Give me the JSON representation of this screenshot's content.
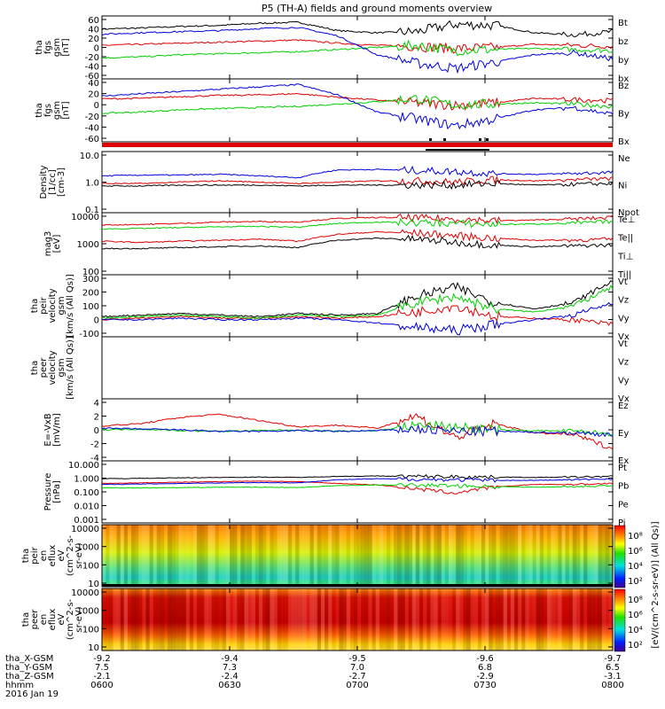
{
  "title": "P5 (TH-A) fields and ground moments overview",
  "colors": {
    "black": "#000000",
    "red": "#e00000",
    "green": "#00d000",
    "blue": "#0000e0"
  },
  "panels": [
    {
      "id": "fgs-gsm-a",
      "ylabel": [
        "tha",
        "fgs",
        "gsm",
        "[nT]"
      ],
      "ticks": [
        "60",
        "40",
        "20",
        "0",
        "-20",
        "-40",
        "-60"
      ],
      "legend": [
        {
          "text": "Bt",
          "color": "black"
        },
        {
          "text": "bz",
          "color": "red"
        },
        {
          "text": "by",
          "color": "green"
        },
        {
          "text": "bx",
          "color": "blue"
        }
      ]
    },
    {
      "id": "fgs-gsm-b",
      "ylabel": [
        "tha",
        "fgs",
        "gsm",
        "[nT]"
      ],
      "ticks": [
        "40",
        "20",
        "0",
        "-20",
        "-40",
        "-60"
      ],
      "legend": [
        {
          "text": "Bz",
          "color": "red"
        },
        {
          "text": "By",
          "color": "green"
        },
        {
          "text": "Bx",
          "color": "blue"
        }
      ]
    },
    {
      "id": "density",
      "ylabel": [
        "Density",
        "[1/cc]",
        "[cm-3]"
      ],
      "ticks": [
        "10.0",
        "1.0",
        "0.1"
      ],
      "legend": [
        {
          "text": "Ne",
          "color": "red"
        },
        {
          "text": "Ni",
          "color": "black"
        },
        {
          "text": "Npot",
          "color": "blue"
        }
      ]
    },
    {
      "id": "temperature",
      "ylabel": [
        "mag3",
        "[eV]"
      ],
      "ticks": [
        "10000",
        "1000",
        "100"
      ],
      "legend": [
        {
          "text": "Te⊥",
          "color": "red"
        },
        {
          "text": "Te||",
          "color": "black"
        },
        {
          "text": "Ti⊥",
          "color": "red"
        },
        {
          "text": "Ti||",
          "color": "green"
        }
      ]
    },
    {
      "id": "peir-velocity",
      "ylabel": [
        "tha",
        "peir",
        "velocity",
        "gsm",
        "[km/s (All Qs)]"
      ],
      "ticks": [
        "300",
        "200",
        "100",
        "0",
        "-100"
      ],
      "legend": [
        {
          "text": "Vt",
          "color": "black"
        },
        {
          "text": "Vz",
          "color": "red"
        },
        {
          "text": "Vy",
          "color": "green"
        },
        {
          "text": "Vx",
          "color": "blue"
        }
      ]
    },
    {
      "id": "peer-velocity",
      "ylabel": [
        "tha",
        "peer",
        "velocity",
        "gsm",
        "[km/s (All Qs)]"
      ],
      "ticks": [],
      "legend": [
        {
          "text": "Vt",
          "color": "black"
        },
        {
          "text": "Vz",
          "color": "red"
        },
        {
          "text": "Vy",
          "color": "green"
        },
        {
          "text": "Vx",
          "color": "blue"
        }
      ]
    },
    {
      "id": "efield",
      "ylabel": [
        "E=-VxB",
        "[mV/m]"
      ],
      "ticks": [
        "4",
        "2",
        "0",
        "-2",
        "-4"
      ],
      "legend": [
        {
          "text": "Ez",
          "color": "red"
        },
        {
          "text": "Ey",
          "color": "green"
        },
        {
          "text": "Ex",
          "color": "blue"
        }
      ]
    },
    {
      "id": "pressure",
      "ylabel": [
        "Pressure",
        "[nPa]"
      ],
      "ticks": [
        "10.000",
        "1.000",
        "0.100",
        "0.010",
        "0.001"
      ],
      "legend": [
        {
          "text": "Pt",
          "color": "black"
        },
        {
          "text": "Pb",
          "color": "red"
        },
        {
          "text": "Pe",
          "color": "green"
        },
        {
          "text": "Pi",
          "color": "blue"
        }
      ]
    },
    {
      "id": "peir-eflux",
      "ylabel": [
        "tha",
        "peir",
        "en",
        "eflux",
        "eV",
        "(cm^2-s-",
        "sr-eV)"
      ],
      "ticks": [
        "10000",
        "1000",
        "100",
        "10"
      ]
    },
    {
      "id": "peer-eflux",
      "ylabel": [
        "tha",
        "peer",
        "en",
        "eflux",
        "eV",
        "(cm^2-s-",
        "sr-eV)"
      ],
      "ticks": [
        "10000",
        "1000",
        "100",
        "10"
      ]
    }
  ],
  "colorbar": {
    "label": "[eV/(cm^2-s-sr-eV)] (All Qs)]",
    "ticks_top": [
      "10⁸",
      "10⁶",
      "10⁴",
      "10²"
    ],
    "ticks_bottom": [
      "10⁸",
      "10⁶",
      "10⁴",
      "10²"
    ]
  },
  "xaxis": {
    "rows": [
      {
        "label": "tha_X-GSM",
        "values": [
          "-9.2",
          "-9.4",
          "-9.5",
          "-9.6",
          "-9.7"
        ]
      },
      {
        "label": "tha_Y-GSM",
        "values": [
          "7.5",
          "7.3",
          "7.0",
          "6.8",
          "6.5"
        ]
      },
      {
        "label": "tha_Z-GSM",
        "values": [
          "-2.1",
          "-2.4",
          "-2.7",
          "-2.9",
          "-3.1"
        ]
      },
      {
        "label": "hhmm",
        "values": [
          "0600",
          "0630",
          "0700",
          "0730",
          "0800"
        ]
      }
    ],
    "date": "2016 Jan 19"
  },
  "chart_data": {
    "type": "line",
    "time_range": [
      "0600",
      "0800"
    ],
    "x_ticks": [
      "0600",
      "0630",
      "0700",
      "0730",
      "0800"
    ],
    "panels": [
      {
        "name": "fgs gsm",
        "ylim": [
          -60,
          60
        ],
        "series": [
          {
            "name": "Bt",
            "values": [
              35,
              37,
              40,
              42,
              46,
              48,
              32,
              28,
              30,
              44,
              42,
              28,
              24,
              30
            ]
          },
          {
            "name": "bz",
            "values": [
              4,
              6,
              8,
              10,
              12,
              14,
              8,
              4,
              2,
              -2,
              0,
              6,
              4,
              2
            ]
          },
          {
            "name": "by",
            "values": [
              -20,
              -18,
              -14,
              -12,
              -10,
              -8,
              -4,
              0,
              4,
              -6,
              -4,
              -2,
              -4,
              -6
            ]
          },
          {
            "name": "bx",
            "values": [
              25,
              28,
              30,
              32,
              36,
              38,
              22,
              -14,
              -30,
              -40,
              -28,
              -14,
              -10,
              -22
            ]
          }
        ]
      },
      {
        "name": "fgs gsm",
        "ylim": [
          -70,
          40
        ],
        "series": [
          {
            "name": "Bz",
            "values": [
              5,
              6,
              9,
              11,
              12,
              14,
              8,
              3,
              -2,
              -6,
              -2,
              6,
              4,
              2
            ]
          },
          {
            "name": "By",
            "values": [
              -20,
              -18,
              -14,
              -12,
              -10,
              -8,
              -4,
              0,
              6,
              -6,
              -4,
              -2,
              -4,
              -8
            ]
          },
          {
            "name": "Bx",
            "values": [
              10,
              14,
              18,
              22,
              26,
              30,
              12,
              -18,
              -30,
              -42,
              -30,
              -14,
              -10,
              -22
            ]
          }
        ]
      },
      {
        "name": "Density",
        "ylim": [
          0.1,
          10
        ],
        "scale": "log",
        "series": [
          {
            "name": "Ne",
            "values": [
              0.9,
              0.9,
              1.0,
              1.1,
              1.0,
              0.9,
              1.0,
              1.1,
              1.1,
              1.0,
              1.2,
              1.1,
              1.2,
              1.3
            ]
          },
          {
            "name": "Ni",
            "values": [
              0.75,
              0.75,
              0.8,
              0.8,
              0.8,
              0.75,
              0.8,
              0.8,
              0.8,
              0.8,
              0.9,
              0.8,
              0.85,
              0.9
            ]
          },
          {
            "name": "Npot",
            "values": [
              1.6,
              1.7,
              1.7,
              1.8,
              1.6,
              1.4,
              2.5,
              2.6,
              2.4,
              2.2,
              1.9,
              1.8,
              1.9,
              2.1
            ]
          }
        ]
      },
      {
        "name": "Temperature",
        "ylim": [
          100,
          10000
        ],
        "scale": "log",
        "series": [
          {
            "name": "Te⊥",
            "values": [
              1200,
              1100,
              1200,
              1300,
              1400,
              1200,
              2000,
              2400,
              2200,
              1800,
              1500,
              1300,
              1300,
              1400
            ]
          },
          {
            "name": "Te||",
            "values": [
              700,
              700,
              750,
              800,
              850,
              750,
              1300,
              1500,
              1400,
              1100,
              900,
              800,
              850,
              900
            ]
          },
          {
            "name": "Ti⊥",
            "values": [
              4000,
              4200,
              4500,
              5000,
              5200,
              5000,
              6500,
              7000,
              6800,
              6200,
              5500,
              5800,
              6200,
              7000
            ]
          },
          {
            "name": "Ti||",
            "values": [
              3000,
              3100,
              3300,
              3500,
              3600,
              3400,
              4500,
              5000,
              4800,
              4500,
              4200,
              4300,
              4600,
              5200
            ]
          }
        ]
      },
      {
        "name": "peir velocity",
        "ylim": [
          -100,
          300
        ],
        "series": [
          {
            "name": "Vt",
            "values": [
              30,
              40,
              50,
              40,
              30,
              50,
              40,
              50,
              160,
              220,
              120,
              80,
              120,
              260
            ]
          },
          {
            "name": "Vz",
            "values": [
              10,
              20,
              30,
              20,
              20,
              30,
              20,
              30,
              60,
              100,
              30,
              20,
              10,
              -20
            ]
          },
          {
            "name": "Vy",
            "values": [
              20,
              30,
              40,
              30,
              20,
              40,
              30,
              40,
              120,
              160,
              80,
              60,
              100,
              220
            ]
          },
          {
            "name": "Vx",
            "values": [
              10,
              10,
              20,
              10,
              10,
              20,
              10,
              -10,
              -40,
              -60,
              -20,
              10,
              40,
              120
            ]
          }
        ]
      },
      {
        "name": "peer velocity",
        "series": []
      },
      {
        "name": "E=-VxB",
        "ylim": [
          -4,
          4
        ],
        "series": [
          {
            "name": "Ez",
            "values": [
              0.5,
              0.8,
              1.6,
              2.0,
              1.2,
              0.4,
              0.6,
              0.2,
              1.8,
              -1.0,
              0.8,
              -0.4,
              -0.6,
              -2.4
            ]
          },
          {
            "name": "Ey",
            "values": [
              0.0,
              0.1,
              -0.1,
              -0.2,
              -0.1,
              0.0,
              -0.2,
              -0.1,
              0.6,
              0.4,
              0.0,
              -0.1,
              -0.2,
              -0.5
            ]
          },
          {
            "name": "Ex",
            "values": [
              0.2,
              0.1,
              0.0,
              -0.2,
              -0.2,
              -0.1,
              -0.2,
              -0.1,
              0.1,
              -0.2,
              -0.2,
              -0.3,
              -0.4,
              -0.6
            ]
          }
        ]
      },
      {
        "name": "Pressure",
        "ylim": [
          0.001,
          10
        ],
        "scale": "log",
        "series": [
          {
            "name": "Pt",
            "values": [
              0.7,
              0.75,
              0.8,
              0.85,
              0.9,
              0.85,
              1.0,
              1.05,
              1.0,
              0.95,
              0.9,
              0.85,
              0.9,
              1.0
            ]
          },
          {
            "name": "Pb",
            "values": [
              0.35,
              0.38,
              0.42,
              0.46,
              0.5,
              0.45,
              0.35,
              0.28,
              0.15,
              0.08,
              0.2,
              0.3,
              0.3,
              0.35
            ]
          },
          {
            "name": "Pe",
            "values": [
              0.18,
              0.18,
              0.19,
              0.2,
              0.2,
              0.19,
              0.25,
              0.28,
              0.27,
              0.25,
              0.22,
              0.2,
              0.22,
              0.25
            ]
          },
          {
            "name": "Pi",
            "values": [
              0.3,
              0.32,
              0.35,
              0.38,
              0.4,
              0.38,
              0.6,
              0.7,
              0.65,
              0.6,
              0.55,
              0.55,
              0.6,
              0.7
            ]
          }
        ]
      },
      {
        "name": "peir en eflux",
        "type": "heatmap",
        "ylim": [
          10,
          10000
        ],
        "scale": "log"
      },
      {
        "name": "peer en eflux",
        "type": "heatmap",
        "ylim": [
          10,
          10000
        ],
        "scale": "log"
      }
    ]
  }
}
